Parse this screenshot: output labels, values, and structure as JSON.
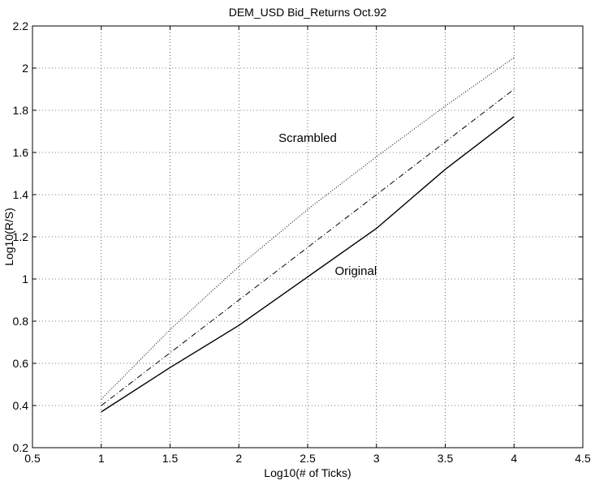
{
  "chart_data": {
    "type": "line",
    "title": "DEM_USD Bid_Returns Oct.92",
    "xlabel": "Log10(# of Ticks)",
    "ylabel": "Log10(R/S)",
    "xlim": [
      0.5,
      4.5
    ],
    "ylim": [
      0.2,
      2.2
    ],
    "xticks": [
      0.5,
      1,
      1.5,
      2,
      2.5,
      3,
      3.5,
      4,
      4.5
    ],
    "yticks": [
      0.2,
      0.4,
      0.6,
      0.8,
      1,
      1.2,
      1.4,
      1.6,
      1.8,
      2,
      2.2
    ],
    "xtick_labels": [
      "0.5",
      "1",
      "1.5",
      "2",
      "2.5",
      "3",
      "3.5",
      "4",
      "4.5"
    ],
    "ytick_labels": [
      "0.2",
      "0.4",
      "0.6",
      "0.8",
      "1",
      "1.2",
      "1.4",
      "1.6",
      "1.8",
      "2",
      "2.2"
    ],
    "grid": true,
    "series": [
      {
        "name": "Scrambled",
        "style": "dotted",
        "x": [
          1.0,
          1.5,
          2.0,
          2.5,
          3.0,
          3.5,
          4.0
        ],
        "y": [
          0.43,
          0.76,
          1.06,
          1.33,
          1.58,
          1.82,
          2.05
        ]
      },
      {
        "name": "",
        "style": "dashdot",
        "x": [
          1.0,
          4.0
        ],
        "y": [
          0.4,
          1.9
        ]
      },
      {
        "name": "Original",
        "style": "solid",
        "x": [
          1.0,
          1.5,
          2.0,
          2.5,
          3.0,
          3.5,
          4.0
        ],
        "y": [
          0.37,
          0.58,
          0.78,
          1.01,
          1.24,
          1.52,
          1.77
        ]
      }
    ],
    "annotations": [
      {
        "text": "Scrambled",
        "x": 2.5,
        "y": 1.65
      },
      {
        "text": "Original",
        "x": 2.85,
        "y": 1.02
      }
    ],
    "colors": {
      "line": "#000000",
      "background": "#ffffff"
    }
  }
}
